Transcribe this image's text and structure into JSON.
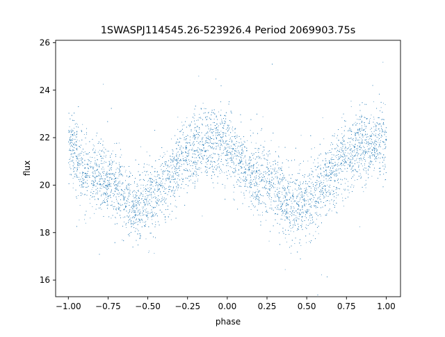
{
  "chart_data": {
    "type": "scatter",
    "title": "1SWASPJ114545.26-523926.4 Period 2069903.75s",
    "xlabel": "phase",
    "ylabel": "flux",
    "xlim": [
      -1.08,
      1.09
    ],
    "ylim": [
      15.3,
      26.1
    ],
    "xticks": [
      -1.0,
      -0.75,
      -0.5,
      -0.25,
      0.0,
      0.25,
      0.5,
      0.75,
      1.0
    ],
    "xtick_labels": [
      "−1.00",
      "−0.75",
      "−0.50",
      "−0.25",
      "0.00",
      "0.25",
      "0.50",
      "0.75",
      "1.00"
    ],
    "yticks": [
      16,
      18,
      20,
      22,
      24,
      26
    ],
    "ytick_labels": [
      "16",
      "18",
      "20",
      "22",
      "24",
      "26"
    ],
    "grid": false,
    "legend": "none",
    "marker_color": "#1f77b4",
    "series": [
      {
        "x_range": [
          -1.0,
          1.0
        ],
        "mean_curve": {
          "phase": [
            0.0,
            0.05,
            0.1,
            0.15,
            0.2,
            0.25,
            0.3,
            0.35,
            0.4,
            0.45,
            0.5,
            0.55,
            0.6,
            0.65,
            0.7,
            0.75,
            0.8,
            0.85,
            0.9,
            0.95,
            1.0
          ],
          "flux": [
            21.8,
            21.2,
            20.7,
            20.4,
            20.3,
            20.2,
            20.0,
            19.6,
            19.1,
            19.2,
            19.4,
            19.6,
            20.0,
            20.4,
            20.9,
            21.2,
            21.5,
            21.6,
            21.7,
            21.8,
            21.8
          ]
        },
        "scatter_sd": 0.75,
        "n_points_approx": 9000
      }
    ]
  }
}
